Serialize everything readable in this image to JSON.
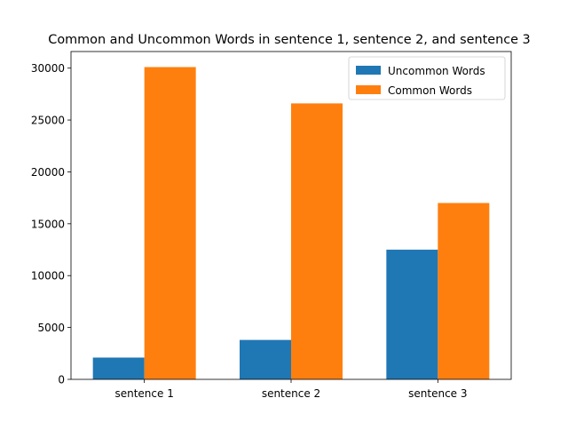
{
  "chart_data": {
    "type": "bar",
    "title": "Common and Uncommon Words in sentence 1, sentence 2, and sentence 3",
    "categories": [
      "sentence 1",
      "sentence 2",
      "sentence 3"
    ],
    "series": [
      {
        "name": "Uncommon Words",
        "color": "#1f77b4",
        "values": [
          2100,
          3800,
          12500
        ]
      },
      {
        "name": "Common Words",
        "color": "#ff7f0e",
        "values": [
          30100,
          26600,
          17000
        ]
      }
    ],
    "xlabel": "",
    "ylabel": "",
    "ylim": [
      0,
      31600
    ],
    "yticks": [
      0,
      5000,
      10000,
      15000,
      20000,
      25000,
      30000
    ],
    "ytick_labels": [
      "0",
      "5000",
      "10000",
      "15000",
      "20000",
      "25000",
      "30000"
    ],
    "grid": false,
    "legend_position": "top-right"
  }
}
